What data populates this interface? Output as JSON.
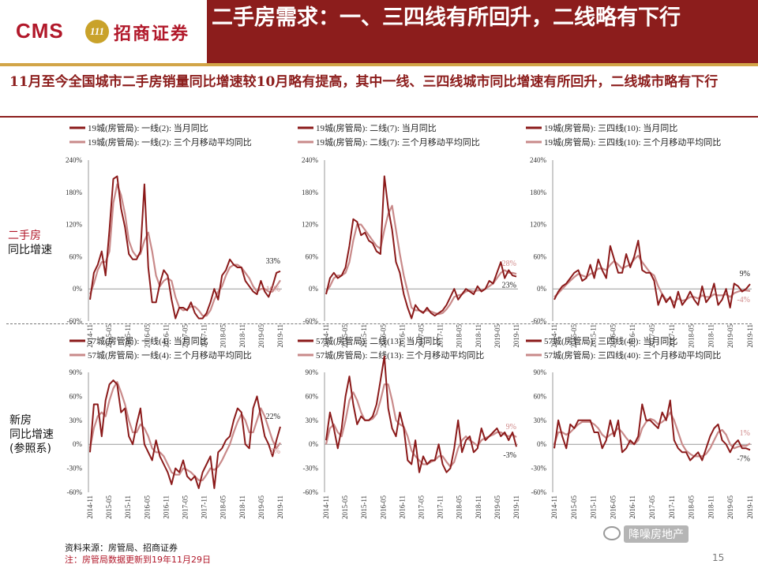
{
  "header": {
    "logo_cms": "CMS",
    "logo_emblem": "111",
    "logo_text": "招商证券",
    "title": "二手房需求：一、三四线有所回升，二线略有下行"
  },
  "subtitle": "11月至今全国城市二手房销量同比增速较10月略有提高，其中一线、三四线城市同比增速有所回升，二线城市略有下行",
  "row_labels": {
    "second_hand_line1": "二手房",
    "second_hand_line2": "同比增速",
    "new_home_line1": "新房",
    "new_home_line2": "同比增速",
    "new_home_line3": "(参照系)"
  },
  "footnotes": {
    "source": "资料来源：房管局、招商证券",
    "note": "注：房管局数据更新到19年11月29日"
  },
  "watermark": "降噪房地产",
  "page_number": "15",
  "colors": {
    "brand_red": "#8c1d1c",
    "current_series": "#8b1a1a",
    "moving_avg_series": "#c98a8a",
    "gold": "#d2a548"
  },
  "x_tick_labels": [
    "2014-11",
    "2015-05",
    "2015-11",
    "2016-05",
    "2016-11",
    "2017-05",
    "2017-11",
    "2018-05",
    "2018-11",
    "2019-05",
    "2019-11"
  ],
  "chart_data": [
    {
      "type": "line",
      "series": [
        {
          "name": "19城(房管局): 一线(2): 当月同比",
          "values": [
            -20,
            30,
            45,
            70,
            25,
            110,
            205,
            210,
            150,
            115,
            65,
            55,
            55,
            70,
            195,
            40,
            -25,
            -25,
            10,
            35,
            25,
            -20,
            -55,
            -35,
            -35,
            -40,
            -25,
            -45,
            -55,
            -55,
            -45,
            -25,
            0,
            -20,
            25,
            35,
            55,
            45,
            40,
            40,
            15,
            5,
            -5,
            -10,
            15,
            -5,
            -15,
            5,
            30,
            33
          ],
          "end_label": "33%"
        },
        {
          "name": "19城(房管局): 一线(2): 三个月移动平均同比",
          "values": [
            -10,
            10,
            35,
            50,
            50,
            70,
            160,
            195,
            175,
            140,
            90,
            70,
            60,
            65,
            90,
            105,
            70,
            25,
            5,
            15,
            20,
            15,
            -15,
            -35,
            -40,
            -38,
            -33,
            -33,
            -40,
            -50,
            -50,
            -40,
            -20,
            -5,
            5,
            25,
            40,
            45,
            45,
            40,
            30,
            20,
            5,
            -5,
            0,
            0,
            -5,
            -5,
            5,
            16
          ],
          "end_label": "16%"
        }
      ],
      "ylim": [
        -60,
        240
      ],
      "yticks": [
        "240%",
        "180%",
        "120%",
        "60%",
        "0%",
        "-60%"
      ]
    },
    {
      "type": "line",
      "series": [
        {
          "name": "19城(房管局): 二线(7): 当月同比",
          "values": [
            -10,
            20,
            30,
            20,
            25,
            40,
            80,
            130,
            125,
            100,
            105,
            90,
            85,
            70,
            65,
            210,
            150,
            110,
            50,
            30,
            -10,
            -35,
            -55,
            -30,
            -40,
            -45,
            -35,
            -45,
            -50,
            -45,
            -40,
            -30,
            -15,
            0,
            -20,
            -10,
            0,
            -5,
            -10,
            5,
            -5,
            0,
            15,
            10,
            30,
            50,
            20,
            35,
            25,
            23
          ],
          "end_label": "23%"
        },
        {
          "name": "19城(房管局): 二线(7): 三个月移动平均同比",
          "values": [
            -5,
            5,
            20,
            25,
            25,
            30,
            50,
            90,
            120,
            120,
            110,
            100,
            90,
            80,
            75,
            110,
            140,
            155,
            110,
            65,
            25,
            -5,
            -35,
            -40,
            -40,
            -43,
            -40,
            -42,
            -45,
            -47,
            -45,
            -38,
            -28,
            -15,
            -12,
            -10,
            -5,
            -3,
            -5,
            -3,
            -3,
            0,
            5,
            10,
            20,
            30,
            35,
            30,
            30,
            28
          ],
          "end_label": "28%"
        }
      ],
      "ylim": [
        -60,
        240
      ],
      "yticks": [
        "240%",
        "180%",
        "120%",
        "60%",
        "0%",
        "-60%"
      ]
    },
    {
      "type": "line",
      "series": [
        {
          "name": "19城(房管局): 三四线(10): 当月同比",
          "values": [
            -20,
            -5,
            5,
            10,
            20,
            30,
            35,
            15,
            20,
            45,
            20,
            55,
            35,
            20,
            80,
            55,
            30,
            30,
            65,
            40,
            60,
            90,
            35,
            30,
            30,
            15,
            -30,
            -10,
            -25,
            -15,
            -35,
            -5,
            -30,
            -20,
            -5,
            -20,
            -30,
            5,
            -25,
            -15,
            10,
            -30,
            -20,
            0,
            -35,
            10,
            5,
            -5,
            0,
            9
          ],
          "end_label": "9%"
        },
        {
          "name": "19城(房管局): 三四线(10): 三个月移动平均同比",
          "values": [
            -15,
            -8,
            0,
            8,
            15,
            22,
            28,
            25,
            22,
            28,
            30,
            38,
            38,
            35,
            45,
            52,
            45,
            38,
            42,
            45,
            55,
            62,
            50,
            40,
            30,
            25,
            5,
            -10,
            -20,
            -18,
            -25,
            -18,
            -22,
            -20,
            -15,
            -15,
            -18,
            -12,
            -15,
            -15,
            -10,
            -12,
            -12,
            -10,
            -15,
            -8,
            -5,
            -3,
            -3,
            -4
          ],
          "end_label": "-4%"
        }
      ],
      "ylim": [
        -60,
        240
      ],
      "yticks": [
        "240%",
        "180%",
        "120%",
        "60%",
        "0%",
        "-60%"
      ]
    },
    {
      "type": "line",
      "series": [
        {
          "name": "57城(房管局): 一线(4): 当月同比",
          "values": [
            -10,
            50,
            50,
            10,
            55,
            75,
            80,
            75,
            40,
            45,
            10,
            0,
            25,
            45,
            0,
            -10,
            -20,
            5,
            -15,
            -25,
            -35,
            -50,
            -30,
            -35,
            -20,
            -40,
            -45,
            -40,
            -55,
            -35,
            -25,
            -15,
            -55,
            -10,
            -5,
            5,
            10,
            30,
            45,
            40,
            0,
            -5,
            45,
            60,
            35,
            10,
            0,
            -15,
            5,
            22
          ],
          "end_label": "22%"
        },
        {
          "name": "57城(房管局): 一线(4): 三个月移动平均同比",
          "values": [
            -5,
            20,
            35,
            40,
            35,
            55,
            70,
            78,
            65,
            50,
            30,
            15,
            15,
            25,
            20,
            10,
            -5,
            -10,
            -10,
            -15,
            -25,
            -35,
            -38,
            -38,
            -30,
            -32,
            -35,
            -40,
            -45,
            -45,
            -38,
            -30,
            -32,
            -28,
            -20,
            -10,
            0,
            15,
            28,
            38,
            30,
            15,
            15,
            30,
            45,
            35,
            20,
            5,
            -5,
            2
          ],
          "end_label": "2%"
        }
      ],
      "ylim": [
        -60,
        90
      ],
      "yticks": [
        "90%",
        "60%",
        "30%",
        "0%",
        "-30%",
        "-60%"
      ]
    },
    {
      "type": "line",
      "series": [
        {
          "name": "57城(房管局): 二线(13): 当月同比",
          "values": [
            5,
            40,
            20,
            -5,
            20,
            60,
            85,
            50,
            25,
            35,
            30,
            30,
            35,
            50,
            80,
            110,
            45,
            20,
            10,
            40,
            20,
            -20,
            -25,
            5,
            -35,
            -15,
            -25,
            -20,
            -20,
            0,
            -25,
            -35,
            -30,
            -5,
            30,
            -10,
            5,
            10,
            -10,
            -5,
            20,
            5,
            10,
            15,
            20,
            10,
            15,
            5,
            15,
            -3
          ],
          "end_label": "-3%"
        },
        {
          "name": "57城(房管局): 二线(13): 三个月移动平均同比",
          "values": [
            0,
            20,
            25,
            15,
            10,
            30,
            55,
            65,
            55,
            40,
            30,
            30,
            32,
            38,
            55,
            75,
            75,
            55,
            30,
            25,
            22,
            10,
            -8,
            -15,
            -20,
            -25,
            -25,
            -22,
            -20,
            -15,
            -15,
            -22,
            -28,
            -22,
            -5,
            5,
            10,
            5,
            2,
            -2,
            5,
            8,
            10,
            12,
            15,
            15,
            12,
            10,
            12,
            9
          ],
          "end_label": "9%"
        }
      ],
      "ylim": [
        -60,
        90
      ],
      "yticks": [
        "90%",
        "60%",
        "30%",
        "0%",
        "-30%",
        "-60%"
      ]
    },
    {
      "type": "line",
      "series": [
        {
          "name": "57城(房管局): 三四线(40): 当月同比",
          "values": [
            -5,
            30,
            10,
            -5,
            25,
            20,
            30,
            30,
            30,
            30,
            15,
            15,
            -5,
            5,
            30,
            10,
            30,
            -10,
            -5,
            5,
            0,
            10,
            50,
            30,
            30,
            25,
            20,
            40,
            30,
            55,
            5,
            -5,
            -10,
            -10,
            -20,
            -15,
            -10,
            -20,
            -5,
            10,
            20,
            25,
            5,
            0,
            -10,
            0,
            5,
            -5,
            -5,
            -7
          ],
          "end_label": "-7%"
        },
        {
          "name": "57城(房管局): 三四线(40): 三个月移动平均同比",
          "values": [
            0,
            15,
            15,
            12,
            15,
            20,
            25,
            28,
            28,
            28,
            25,
            20,
            12,
            8,
            12,
            15,
            20,
            15,
            8,
            2,
            0,
            5,
            20,
            28,
            32,
            30,
            25,
            28,
            32,
            40,
            30,
            15,
            0,
            -8,
            -12,
            -15,
            -15,
            -15,
            -12,
            -5,
            5,
            15,
            18,
            12,
            0,
            -5,
            -3,
            -2,
            -2,
            1
          ],
          "end_label": "1%"
        }
      ],
      "ylim": [
        -60,
        90
      ],
      "yticks": [
        "90%",
        "60%",
        "30%",
        "0%",
        "-30%",
        "-60%"
      ]
    }
  ]
}
